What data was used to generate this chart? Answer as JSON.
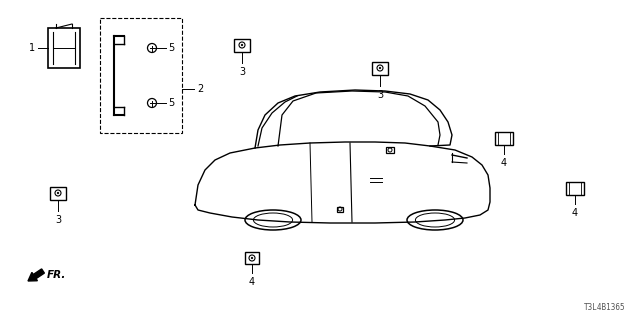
{
  "bg_color": "#ffffff",
  "diagram_ref": "T3L4B1365",
  "fig_width": 6.4,
  "fig_height": 3.2,
  "dpi": 100
}
